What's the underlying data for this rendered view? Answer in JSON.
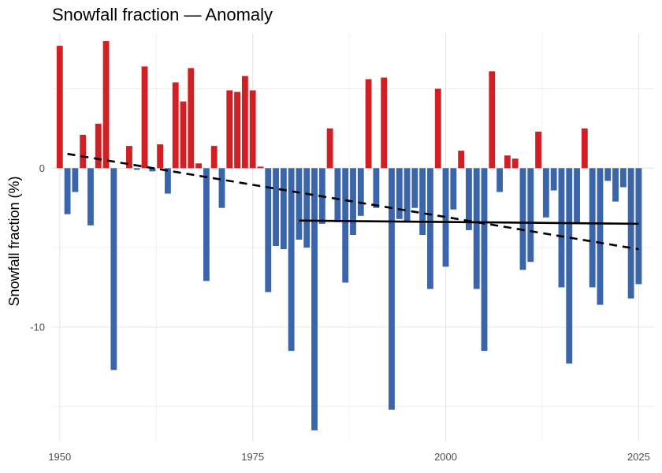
{
  "chart_data": {
    "type": "bar",
    "title": "Snowfall fraction — Anomaly",
    "xlabel": "",
    "ylabel": "Snowfall fraction (%)",
    "xlim": [
      1949,
      2027
    ],
    "ylim": [
      -17.2,
      8.5
    ],
    "x_ticks": [
      1950,
      1975,
      2000,
      2025
    ],
    "y_ticks": [
      0,
      -10
    ],
    "y_tick_labels": [
      "0",
      "-10"
    ],
    "grid": true,
    "colors": {
      "positive": "#d11f23",
      "negative": "#3a65aa",
      "trend": "#000000",
      "grid": "#e6e6e6"
    },
    "x": [
      1950,
      1951,
      1952,
      1953,
      1954,
      1955,
      1956,
      1957,
      1958,
      1959,
      1960,
      1961,
      1962,
      1963,
      1964,
      1965,
      1966,
      1967,
      1968,
      1969,
      1970,
      1971,
      1972,
      1973,
      1974,
      1975,
      1976,
      1977,
      1978,
      1979,
      1980,
      1981,
      1982,
      1983,
      1984,
      1985,
      1986,
      1987,
      1988,
      1989,
      1990,
      1991,
      1992,
      1993,
      1994,
      1995,
      1996,
      1997,
      1998,
      1999,
      2000,
      2001,
      2002,
      2003,
      2004,
      2005,
      2006,
      2007,
      2008,
      2009,
      2010,
      2011,
      2012,
      2013,
      2014,
      2015,
      2016,
      2017,
      2018,
      2019,
      2020,
      2021,
      2022,
      2023,
      2024,
      2025
    ],
    "values": [
      7.7,
      -2.9,
      -1.5,
      2.1,
      -3.6,
      2.8,
      8.0,
      -12.7,
      0,
      1.4,
      -0.1,
      6.4,
      -0.2,
      1.5,
      -1.6,
      5.4,
      4.2,
      6.3,
      0.3,
      -7.1,
      1.4,
      -2.5,
      4.9,
      4.8,
      5.8,
      4.9,
      0.1,
      -7.8,
      -4.9,
      -5.1,
      -11.5,
      -4.5,
      -5.0,
      -16.5,
      -3.5,
      2.5,
      -3.4,
      -7.2,
      -4.2,
      -3.0,
      5.6,
      -2.5,
      5.7,
      -15.2,
      -3.2,
      -3.4,
      -2.5,
      -4.2,
      -7.6,
      5.0,
      -6.2,
      -2.6,
      1.1,
      -3.9,
      -7.6,
      -11.5,
      6.1,
      -1.5,
      0.8,
      0.6,
      -6.4,
      -5.9,
      2.3,
      -3.1,
      -1.4,
      -7.5,
      -12.3,
      -3.5,
      2.5,
      -7.5,
      -8.6,
      -0.8,
      -2.1,
      -1.2,
      -8.2,
      -7.3
    ],
    "trend_lines": [
      {
        "style": "dashed",
        "x": [
          1951,
          2025
        ],
        "y": [
          0.9,
          -5.1
        ]
      },
      {
        "style": "solid",
        "x": [
          1981,
          2025
        ],
        "y": [
          -3.3,
          -3.5
        ]
      }
    ]
  }
}
